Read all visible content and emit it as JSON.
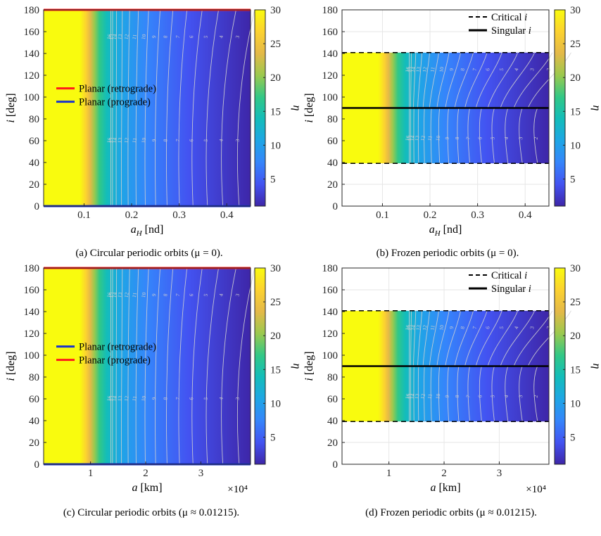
{
  "colorbar_ticks": [
    "5",
    "10",
    "15",
    "20",
    "25",
    "30"
  ],
  "colorbar_label": "η",
  "y_ticks": [
    "0",
    "20",
    "40",
    "60",
    "80",
    "100",
    "120",
    "140",
    "160",
    "180"
  ],
  "x_ticks_nd": [
    "0.1",
    "0.2",
    "0.3",
    "0.4"
  ],
  "x_ticks_km": [
    "1",
    "2",
    "3"
  ],
  "exponent_label": "×10⁴",
  "ylabel": "i [deg]",
  "colors": {
    "retrograde_circ_ab": "#ff1a1a",
    "prograde_circ_ab": "#1a33cc",
    "critical_line": "#000000",
    "singular_line": "#000000",
    "contour_line": "#d0d0d0",
    "colormap": [
      "#3e26a8",
      "#4353f1",
      "#3585fb",
      "#1ea6e5",
      "#13bdba",
      "#32c886",
      "#9bc94e",
      "#e4b948",
      "#fcd230",
      "#f9fb0e"
    ]
  },
  "chart_data": [
    {
      "type": "heatmap",
      "panel": "a",
      "caption": "(a) Circular periodic orbits (μ = 0).",
      "xlabel": "a_H [nd]",
      "ylabel": "i [deg]",
      "xlim": [
        0.015,
        0.45
      ],
      "ylim": [
        0,
        180
      ],
      "clim": [
        1,
        30
      ],
      "colorbar_label": "η",
      "x_ticks": [
        0.1,
        0.2,
        0.3,
        0.4
      ],
      "y_ticks": [
        0,
        20,
        40,
        60,
        80,
        100,
        120,
        140,
        160,
        180
      ],
      "legend": [
        {
          "label": "Planar (retrograde)",
          "color": "#ff1a1a",
          "style": "solid"
        },
        {
          "label": "Planar (prograde)",
          "color": "#1a33cc",
          "style": "solid"
        }
      ],
      "lines": [
        {
          "name": "Planar (retrograde)",
          "y": 180
        },
        {
          "name": "Planar (prograde)",
          "y": 0
        }
      ],
      "contour_labels": [
        "16",
        "15",
        "14",
        "13",
        "12",
        "11",
        "10",
        "9",
        "8",
        "7",
        "6",
        "5",
        "4",
        "3"
      ]
    },
    {
      "type": "heatmap",
      "panel": "b",
      "caption": "(b) Frozen periodic orbits (μ = 0).",
      "xlabel": "a_H [nd]",
      "ylabel": "i [deg]",
      "xlim": [
        0.015,
        0.45
      ],
      "ylim": [
        0,
        180
      ],
      "clim": [
        1,
        30
      ],
      "colorbar_label": "η",
      "x_ticks": [
        0.1,
        0.2,
        0.3,
        0.4
      ],
      "y_ticks": [
        0,
        20,
        40,
        60,
        80,
        100,
        120,
        140,
        160,
        180
      ],
      "legend": [
        {
          "label": "Critical i",
          "color": "#000000",
          "style": "dashed"
        },
        {
          "label": "Singular i",
          "color": "#000000",
          "style": "solid"
        }
      ],
      "lines": [
        {
          "name": "Critical i",
          "y": 39.23
        },
        {
          "name": "Critical i",
          "y": 140.77
        },
        {
          "name": "Singular i",
          "y": 90
        }
      ],
      "data_range": [
        39.23,
        140.77
      ],
      "contour_labels": [
        "16",
        "15",
        "14",
        "13",
        "12",
        "11",
        "10",
        "9",
        "8",
        "7",
        "6",
        "5",
        "4",
        "3",
        "2"
      ]
    },
    {
      "type": "heatmap",
      "panel": "c",
      "caption": "(c) Circular periodic orbits (μ ≈ 0.01215).",
      "xlabel": "a [km]",
      "ylabel": "i [deg]",
      "x_scale_label": "×10⁴",
      "xlim": [
        0.15,
        3.9
      ],
      "ylim": [
        0,
        180
      ],
      "clim": [
        1,
        30
      ],
      "colorbar_label": "η",
      "x_ticks": [
        1,
        2,
        3
      ],
      "y_ticks": [
        0,
        20,
        40,
        60,
        80,
        100,
        120,
        140,
        160,
        180
      ],
      "legend": [
        {
          "label": "Planar (retrograde)",
          "color": "#1a33cc",
          "style": "solid"
        },
        {
          "label": "Planar (prograde)",
          "color": "#ff1a1a",
          "style": "solid"
        }
      ],
      "lines": [
        {
          "name": "Planar (retrograde)",
          "y": 0
        },
        {
          "name": "Planar (prograde)",
          "y": 180
        }
      ],
      "contour_labels": [
        "16",
        "15",
        "14",
        "13",
        "12",
        "11",
        "10",
        "9",
        "8",
        "7",
        "6",
        "5",
        "4",
        "3"
      ]
    },
    {
      "type": "heatmap",
      "panel": "d",
      "caption": "(d) Frozen periodic orbits (μ ≈ 0.01215).",
      "xlabel": "a [km]",
      "ylabel": "i [deg]",
      "x_scale_label": "×10⁴",
      "xlim": [
        0.15,
        3.9
      ],
      "ylim": [
        0,
        180
      ],
      "clim": [
        1,
        30
      ],
      "colorbar_label": "η",
      "x_ticks": [
        1,
        2,
        3
      ],
      "y_ticks": [
        0,
        20,
        40,
        60,
        80,
        100,
        120,
        140,
        160,
        180
      ],
      "legend": [
        {
          "label": "Critical i",
          "color": "#000000",
          "style": "dashed"
        },
        {
          "label": "Singular i",
          "color": "#000000",
          "style": "solid"
        }
      ],
      "lines": [
        {
          "name": "Critical i",
          "y": 39.23
        },
        {
          "name": "Critical i",
          "y": 140.77
        },
        {
          "name": "Singular i",
          "y": 90
        }
      ],
      "data_range": [
        39.23,
        140.77
      ],
      "contour_labels": [
        "16",
        "15",
        "14",
        "13",
        "12",
        "11",
        "10",
        "9",
        "8",
        "7",
        "6",
        "5",
        "4",
        "3",
        "2"
      ]
    }
  ]
}
